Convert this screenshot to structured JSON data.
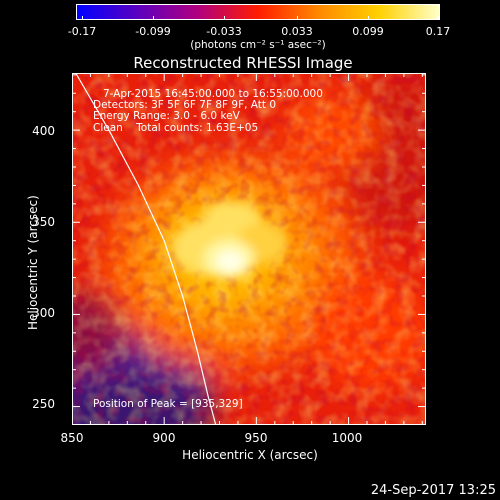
{
  "colorbar": {
    "tick_labels": [
      "-0.17",
      "-0.099",
      "-0.033",
      "0.033",
      "0.099",
      "0.17"
    ],
    "unit_label": "(photons cm⁻² s⁻¹ asec⁻²)",
    "colors": [
      "#0000ff",
      "#5b00bf",
      "#b0007f",
      "#ff1c00",
      "#ff8800",
      "#ffd000",
      "#ffffc8"
    ]
  },
  "title": "Reconstructed RHESSI Image",
  "overlay": {
    "time_range": "7-Apr-2015 16:45:00.000 to 16:55:00.000",
    "detectors": "Detectors: 3F 5F 6F 7F 8F 9F, Att 0",
    "energy_range": "Energy Range: 3.0 - 6.0 keV",
    "clean_info": "Clean    Total counts: 1.63E+05",
    "peak_position": "Position of Peak = [935,329]"
  },
  "axes": {
    "x_label": "Heliocentric X (arcsec)",
    "y_label": "Heliocentric Y (arcsec)",
    "x_tick_labels": [
      "850",
      "900",
      "950",
      "1000"
    ],
    "y_tick_labels": [
      "250",
      "300",
      "350",
      "400"
    ]
  },
  "timestamp": "24-Sep-2017 13:25",
  "chart_data": {
    "type": "heatmap",
    "title": "Reconstructed RHESSI Image",
    "xlabel": "Heliocentric X (arcsec)",
    "ylabel": "Heliocentric Y (arcsec)",
    "xlim": [
      850,
      1042
    ],
    "ylim": [
      240,
      431
    ],
    "x_ticks": [
      850,
      900,
      950,
      1000
    ],
    "y_ticks": [
      250,
      300,
      350,
      400
    ],
    "peak": [
      935,
      329
    ],
    "colorbar_range": [
      -0.17,
      0.17
    ],
    "solar_limb_points": [
      [
        852,
        431
      ],
      [
        870,
        400
      ],
      [
        886,
        370
      ],
      [
        900,
        340
      ],
      [
        910,
        310
      ],
      [
        918,
        280
      ],
      [
        924,
        255
      ],
      [
        928,
        240
      ]
    ]
  }
}
